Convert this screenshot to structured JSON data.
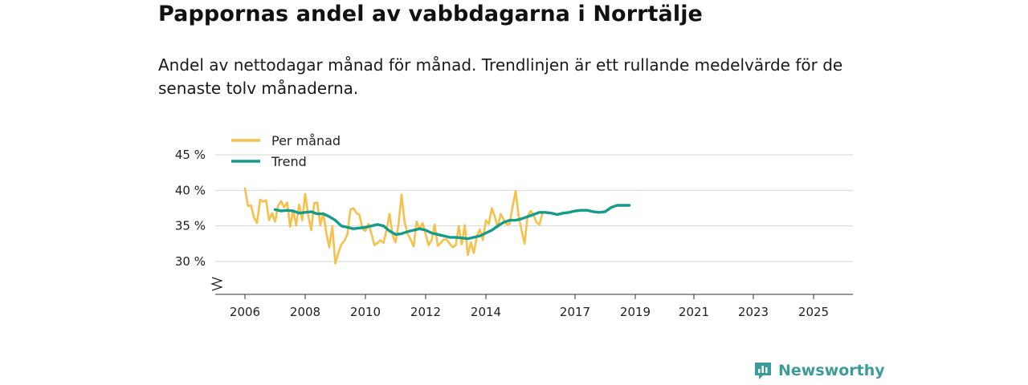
{
  "chart_data": {
    "type": "line",
    "title": "Pappornas andel av vabbdagarna i Norrtälje",
    "subtitle": "Andel av nettodagar månad för månad. Trendlinjen är ett rullande medelvärde för de senaste tolv månaderna.",
    "ylim": [
      25,
      45
    ],
    "yticks": [
      30,
      35,
      40,
      45
    ],
    "ytick_labels": [
      "30 %",
      "35 %",
      "40 %",
      "45 %"
    ],
    "xticks": [
      2006,
      2008,
      2010,
      2012,
      2014,
      2017,
      2019,
      2021,
      2023,
      2025
    ],
    "xtick_labels": [
      "2006",
      "2008",
      "2010",
      "2012",
      "2014",
      "2017",
      "2019",
      "2021",
      "2023",
      "2025"
    ],
    "grid": true,
    "legend": "top-left",
    "series": [
      {
        "name": "Per månad",
        "color": "#f5c14a",
        "points": [
          [
            2006.0,
            40.3
          ],
          [
            2006.1,
            37.8
          ],
          [
            2006.2,
            37.9
          ],
          [
            2006.3,
            36.2
          ],
          [
            2006.4,
            35.4
          ],
          [
            2006.5,
            38.7
          ],
          [
            2006.6,
            38.4
          ],
          [
            2006.7,
            38.6
          ],
          [
            2006.8,
            35.8
          ],
          [
            2006.9,
            36.8
          ],
          [
            2007.0,
            35.6
          ],
          [
            2007.1,
            37.8
          ],
          [
            2007.2,
            38.5
          ],
          [
            2007.3,
            37.6
          ],
          [
            2007.4,
            38.3
          ],
          [
            2007.5,
            34.9
          ],
          [
            2007.6,
            37.2
          ],
          [
            2007.7,
            35.1
          ],
          [
            2007.8,
            38.0
          ],
          [
            2007.9,
            35.8
          ],
          [
            2008.0,
            39.5
          ],
          [
            2008.1,
            36.5
          ],
          [
            2008.2,
            34.4
          ],
          [
            2008.3,
            38.2
          ],
          [
            2008.4,
            38.3
          ],
          [
            2008.5,
            35.1
          ],
          [
            2008.6,
            36.8
          ],
          [
            2008.7,
            34.0
          ],
          [
            2008.8,
            32.0
          ],
          [
            2008.9,
            35.0
          ],
          [
            2009.0,
            29.7
          ],
          [
            2009.1,
            31.2
          ],
          [
            2009.2,
            32.4
          ],
          [
            2009.3,
            32.9
          ],
          [
            2009.4,
            33.8
          ],
          [
            2009.5,
            37.3
          ],
          [
            2009.6,
            37.5
          ],
          [
            2009.7,
            36.8
          ],
          [
            2009.8,
            36.6
          ],
          [
            2009.9,
            34.6
          ],
          [
            2010.0,
            34.3
          ],
          [
            2010.1,
            35.3
          ],
          [
            2010.2,
            33.9
          ],
          [
            2010.3,
            32.3
          ],
          [
            2010.4,
            32.6
          ],
          [
            2010.5,
            33.0
          ],
          [
            2010.6,
            32.6
          ],
          [
            2010.7,
            34.4
          ],
          [
            2010.8,
            36.7
          ],
          [
            2010.9,
            33.7
          ],
          [
            2011.0,
            32.7
          ],
          [
            2011.1,
            35.2
          ],
          [
            2011.2,
            39.4
          ],
          [
            2011.3,
            35.6
          ],
          [
            2011.4,
            33.9
          ],
          [
            2011.5,
            33.1
          ],
          [
            2011.6,
            32.1
          ],
          [
            2011.7,
            35.6
          ],
          [
            2011.8,
            34.5
          ],
          [
            2011.9,
            35.4
          ],
          [
            2012.0,
            33.8
          ],
          [
            2012.1,
            32.3
          ],
          [
            2012.2,
            33.0
          ],
          [
            2012.3,
            35.2
          ],
          [
            2012.4,
            32.2
          ],
          [
            2012.5,
            32.6
          ],
          [
            2012.6,
            33.1
          ],
          [
            2012.7,
            33.1
          ],
          [
            2012.8,
            32.5
          ],
          [
            2012.9,
            32.0
          ],
          [
            2013.0,
            32.3
          ],
          [
            2013.1,
            35.0
          ],
          [
            2013.2,
            32.4
          ],
          [
            2013.3,
            35.1
          ],
          [
            2013.4,
            30.9
          ],
          [
            2013.5,
            32.7
          ],
          [
            2013.6,
            31.2
          ],
          [
            2013.7,
            33.6
          ],
          [
            2013.8,
            34.5
          ],
          [
            2013.9,
            33.0
          ],
          [
            2014.0,
            35.8
          ],
          [
            2014.1,
            35.3
          ],
          [
            2014.2,
            37.5
          ],
          [
            2014.3,
            36.3
          ],
          [
            2014.4,
            34.8
          ],
          [
            2014.5,
            36.7
          ],
          [
            2014.6,
            35.9
          ],
          [
            2014.7,
            35.2
          ],
          [
            2014.8,
            35.3
          ],
          [
            2014.9,
            37.7
          ],
          [
            2015.0,
            39.9
          ],
          [
            2015.1,
            36.5
          ],
          [
            2015.2,
            34.4
          ],
          [
            2015.3,
            32.5
          ],
          [
            2015.4,
            36.3
          ],
          [
            2015.5,
            37.1
          ],
          [
            2015.6,
            36.6
          ],
          [
            2015.7,
            35.5
          ],
          [
            2015.8,
            35.2
          ],
          [
            2015.9,
            36.7
          ]
        ]
      },
      {
        "name": "Trend",
        "color": "#139b8c",
        "points": [
          [
            2007.0,
            37.3
          ],
          [
            2007.2,
            37.1
          ],
          [
            2007.4,
            37.2
          ],
          [
            2007.6,
            37.1
          ],
          [
            2007.8,
            36.8
          ],
          [
            2008.0,
            36.9
          ],
          [
            2008.2,
            37.0
          ],
          [
            2008.4,
            36.7
          ],
          [
            2008.6,
            36.7
          ],
          [
            2008.8,
            36.3
          ],
          [
            2009.0,
            35.8
          ],
          [
            2009.2,
            35.0
          ],
          [
            2009.4,
            34.8
          ],
          [
            2009.6,
            34.6
          ],
          [
            2009.8,
            34.7
          ],
          [
            2010.0,
            34.8
          ],
          [
            2010.2,
            35.0
          ],
          [
            2010.4,
            35.2
          ],
          [
            2010.6,
            35.0
          ],
          [
            2010.8,
            34.3
          ],
          [
            2011.0,
            33.8
          ],
          [
            2011.2,
            33.9
          ],
          [
            2011.4,
            34.2
          ],
          [
            2011.6,
            34.4
          ],
          [
            2011.8,
            34.6
          ],
          [
            2012.0,
            34.4
          ],
          [
            2012.2,
            34.0
          ],
          [
            2012.4,
            33.8
          ],
          [
            2012.6,
            33.6
          ],
          [
            2012.8,
            33.4
          ],
          [
            2013.0,
            33.4
          ],
          [
            2013.2,
            33.3
          ],
          [
            2013.4,
            33.2
          ],
          [
            2013.6,
            33.4
          ],
          [
            2013.8,
            33.6
          ],
          [
            2014.0,
            34.0
          ],
          [
            2014.2,
            34.4
          ],
          [
            2014.4,
            35.0
          ],
          [
            2014.6,
            35.5
          ],
          [
            2014.8,
            35.8
          ],
          [
            2015.0,
            35.8
          ],
          [
            2015.2,
            36.0
          ],
          [
            2015.4,
            36.3
          ],
          [
            2015.6,
            36.6
          ],
          [
            2015.8,
            36.9
          ],
          [
            2016.0,
            36.9
          ],
          [
            2016.2,
            36.8
          ],
          [
            2016.4,
            36.6
          ],
          [
            2016.6,
            36.8
          ],
          [
            2016.8,
            36.9
          ],
          [
            2017.0,
            37.1
          ],
          [
            2017.2,
            37.2
          ],
          [
            2017.4,
            37.2
          ],
          [
            2017.6,
            37.0
          ],
          [
            2017.8,
            36.9
          ],
          [
            2018.0,
            37.0
          ],
          [
            2018.2,
            37.6
          ],
          [
            2018.4,
            37.9
          ],
          [
            2018.6,
            37.9
          ],
          [
            2018.8,
            37.9
          ]
        ]
      }
    ]
  },
  "branding": {
    "name": "Newsworthy",
    "color": "#3d9c95"
  }
}
